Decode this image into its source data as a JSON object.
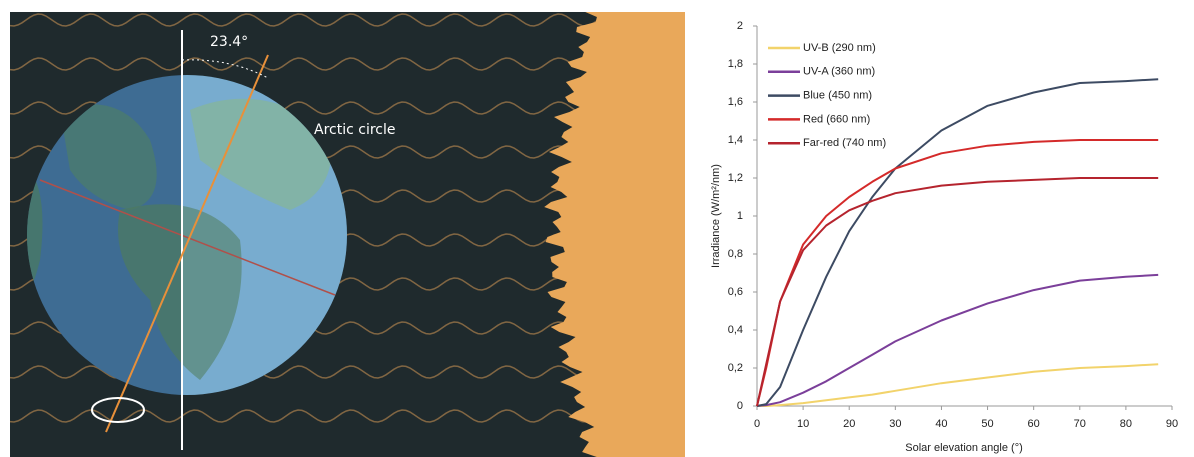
{
  "illustration": {
    "angle_label": "23.4°",
    "circle_label": "Arctic circle"
  },
  "chart_data": {
    "type": "line",
    "x_label": "Solar elevation angle (°)",
    "y_label": "Irradiance (W/m²/nm)",
    "x": [
      0,
      2,
      5,
      10,
      15,
      20,
      25,
      30,
      40,
      50,
      60,
      70,
      80,
      87
    ],
    "series": [
      {
        "name": "UV-B (290 nm)",
        "color": "#f2d36b",
        "values": [
          0,
          0,
          0.005,
          0.015,
          0.03,
          0.045,
          0.06,
          0.08,
          0.12,
          0.15,
          0.18,
          0.2,
          0.21,
          0.22
        ]
      },
      {
        "name": "UV-A (360 nm)",
        "color": "#7b3f9a",
        "values": [
          0,
          0.005,
          0.02,
          0.07,
          0.13,
          0.2,
          0.27,
          0.34,
          0.45,
          0.54,
          0.61,
          0.66,
          0.68,
          0.69
        ]
      },
      {
        "name": "Blue (450 nm)",
        "color": "#3d4b63",
        "values": [
          0,
          0.01,
          0.1,
          0.4,
          0.68,
          0.92,
          1.1,
          1.25,
          1.45,
          1.58,
          1.65,
          1.7,
          1.71,
          1.72
        ]
      },
      {
        "name": "Red (660 nm)",
        "color": "#d42a2a",
        "values": [
          0,
          0.2,
          0.55,
          0.85,
          1.0,
          1.1,
          1.18,
          1.25,
          1.33,
          1.37,
          1.39,
          1.4,
          1.4,
          1.4
        ]
      },
      {
        "name": "Far-red (740 nm)",
        "color": "#b5242e",
        "values": [
          0,
          0.22,
          0.55,
          0.82,
          0.95,
          1.03,
          1.08,
          1.12,
          1.16,
          1.18,
          1.19,
          1.2,
          1.2,
          1.2
        ]
      }
    ],
    "xlim": [
      0,
      90
    ],
    "xticks": [
      0,
      10,
      20,
      30,
      40,
      50,
      60,
      70,
      80,
      90
    ],
    "ylim": [
      0,
      2
    ],
    "yticks": [
      0,
      {
        "value": 0.2,
        "label": "0,2"
      },
      {
        "value": 0.4,
        "label": "0,4"
      },
      {
        "value": 0.6,
        "label": "0,6"
      },
      {
        "value": 0.8,
        "label": "0,8"
      },
      1,
      {
        "value": 1.2,
        "label": "1,2"
      },
      {
        "value": 1.4,
        "label": "1,4"
      },
      {
        "value": 1.6,
        "label": "1,6"
      },
      {
        "value": 1.8,
        "label": "1,8"
      },
      2
    ],
    "legend": "upper left",
    "grid": false
  }
}
